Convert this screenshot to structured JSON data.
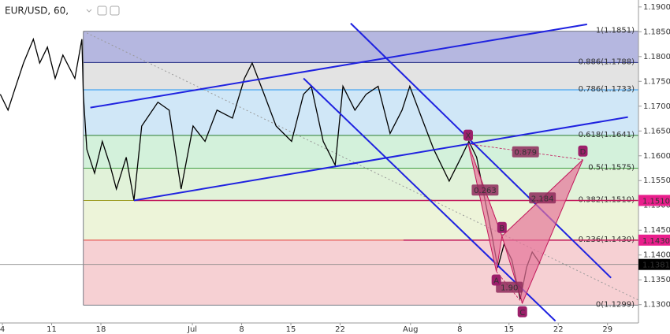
{
  "chart_data": {
    "type": "price_chart",
    "title": "EUR/USD, 60,",
    "xlim": [
      -0.34,
      90.4
    ],
    "ylim": [
      1.1263,
      1.1914
    ],
    "xticks": [
      {
        "value": 0,
        "label": "4"
      },
      {
        "value": 7,
        "label": "11"
      },
      {
        "value": 14,
        "label": "18"
      },
      {
        "value": 27,
        "label": "Jul"
      },
      {
        "value": 34,
        "label": "8"
      },
      {
        "value": 41,
        "label": "15"
      },
      {
        "value": 48,
        "label": "22"
      },
      {
        "value": 58,
        "label": "Aug"
      },
      {
        "value": 65,
        "label": "8"
      },
      {
        "value": 72,
        "label": "15"
      },
      {
        "value": 79,
        "label": "22"
      },
      {
        "value": 86,
        "label": "29"
      }
    ],
    "yticks": [
      {
        "value": 1.13,
        "label": "1.1300"
      },
      {
        "value": 1.135,
        "label": "1.1350"
      },
      {
        "value": 1.14,
        "label": "1.1400"
      },
      {
        "value": 1.145,
        "label": "1.1450"
      },
      {
        "value": 1.15,
        "label": "1.1500"
      },
      {
        "value": 1.155,
        "label": "1.1550"
      },
      {
        "value": 1.16,
        "label": "1.1600"
      },
      {
        "value": 1.165,
        "label": "1.1650"
      },
      {
        "value": 1.17,
        "label": "1.1700"
      },
      {
        "value": 1.175,
        "label": "1.1750"
      },
      {
        "value": 1.18,
        "label": "1.1800"
      },
      {
        "value": 1.185,
        "label": "1.1850"
      },
      {
        "value": 1.19,
        "label": "1.1900"
      }
    ],
    "price": {
      "color": "#000000",
      "x": [
        -0.3,
        0.8,
        1.9,
        3.0,
        4.4,
        5.3,
        6.4,
        7.5,
        8.6,
        10.3,
        11.3,
        11.5,
        12.0,
        13.1,
        14.2,
        15.3,
        16.2,
        17.6,
        18.7,
        19.8,
        22.1,
        23.7,
        25.4,
        27.1,
        28.8,
        30.5,
        32.7,
        34.4,
        35.5,
        37.2,
        38.9,
        41.1,
        42.8,
        43.9,
        45.6,
        47.3,
        48.4,
        50.1,
        51.7,
        53.4,
        55.1,
        56.8,
        57.9,
        59.6,
        61.3,
        63.5,
        65.2,
        66.3,
        67.4,
        68.5,
        69.6,
        70.4,
        71.3,
        72.4,
        73.6,
        74.5,
        75.3,
        76.4
      ],
      "values": [
        1.1724,
        1.1692,
        1.174,
        1.1787,
        1.1835,
        1.1787,
        1.1819,
        1.1756,
        1.1803,
        1.1756,
        1.1835,
        1.1724,
        1.1613,
        1.1565,
        1.1629,
        1.1581,
        1.1533,
        1.1597,
        1.151,
        1.166,
        1.1708,
        1.1692,
        1.1533,
        1.166,
        1.1629,
        1.1692,
        1.1676,
        1.1756,
        1.1787,
        1.1724,
        1.166,
        1.1629,
        1.1724,
        1.174,
        1.1629,
        1.1581,
        1.174,
        1.1692,
        1.1724,
        1.174,
        1.1645,
        1.1692,
        1.174,
        1.1676,
        1.1613,
        1.1549,
        1.1597,
        1.1629,
        1.1597,
        1.1517,
        1.1438,
        1.1375,
        1.1422,
        1.139,
        1.1311,
        1.1375,
        1.1406,
        1.1383
      ]
    },
    "fib": {
      "x_start": 11.5,
      "levels": [
        {
          "label": "1(1.1851)",
          "price": 1.1851,
          "color": "#787b86"
        },
        {
          "label": "0.886(1.1788)",
          "price": 1.1788,
          "color": "#1a237e"
        },
        {
          "label": "0.786(1.1733)",
          "price": 1.1733,
          "color": "#2196f3"
        },
        {
          "label": "0.618(1.1641)",
          "price": 1.1641,
          "color": "#2e7d32"
        },
        {
          "label": "0.5(1.1575)",
          "price": 1.1575,
          "color": "#43a047"
        },
        {
          "label": "0.382(1.1510)",
          "price": 1.151,
          "color": "#9e9d24"
        },
        {
          "label": "0.236(1.1430)",
          "price": 1.143,
          "color": "#e53935"
        },
        {
          "label": "0(1.1299)",
          "price": 1.1299,
          "color": "#787b86"
        }
      ],
      "band_colors": [
        "#a8aadb",
        "#dedede",
        "#c8e3f6",
        "#cbeed5",
        "#dcf0d2",
        "#eaf2d2",
        "#f4c8cb"
      ]
    },
    "trend_lines": {
      "color": "#1f22e0",
      "lines": [
        [
          [
            12.5,
            1.1697
          ],
          [
            83.1,
            1.1865
          ]
        ],
        [
          [
            18.7,
            1.151
          ],
          [
            88.9,
            1.1678
          ]
        ],
        [
          [
            49.5,
            1.1867
          ],
          [
            86.5,
            1.1354
          ]
        ],
        [
          [
            42.8,
            1.1756
          ],
          [
            78.6,
            1.1267
          ]
        ]
      ]
    },
    "dotted_line": [
      [
        11.5,
        1.1851
      ],
      [
        90.4,
        1.1309
      ]
    ],
    "level_lines": [
      {
        "price": 1.151,
        "x_start": 18.7,
        "color": "#c2185b"
      },
      {
        "price": 1.143,
        "x_start": 57.0,
        "color": "#c2185b"
      }
    ],
    "price_tags": [
      {
        "value": 1.151,
        "label": "1.1510",
        "color": "#e91e8c"
      },
      {
        "value": 1.143,
        "label": "1.1430",
        "color": "#e91e8c"
      },
      {
        "value": 1.1381,
        "label": "1.1381",
        "color": "#000000"
      }
    ],
    "pattern": {
      "color": "#c2185b",
      "fill": "#e57399",
      "points": [
        {
          "name": "X",
          "x": 66.2,
          "price": 1.1624
        },
        {
          "name": "A",
          "x": 70.2,
          "price": 1.1367
        },
        {
          "name": "B",
          "x": 71.0,
          "price": 1.1438
        },
        {
          "name": "C",
          "x": 73.9,
          "price": 1.1303
        },
        {
          "name": "D",
          "x": 82.5,
          "price": 1.1592
        }
      ],
      "ratios": [
        {
          "from": 0,
          "to": 2,
          "text": "0.263"
        },
        {
          "from": 0,
          "to": 4,
          "text": "0.879"
        },
        {
          "from": 2,
          "to": 4,
          "text": "2.184"
        },
        {
          "from": 1,
          "to": 3,
          "text": "1.90"
        }
      ]
    }
  }
}
